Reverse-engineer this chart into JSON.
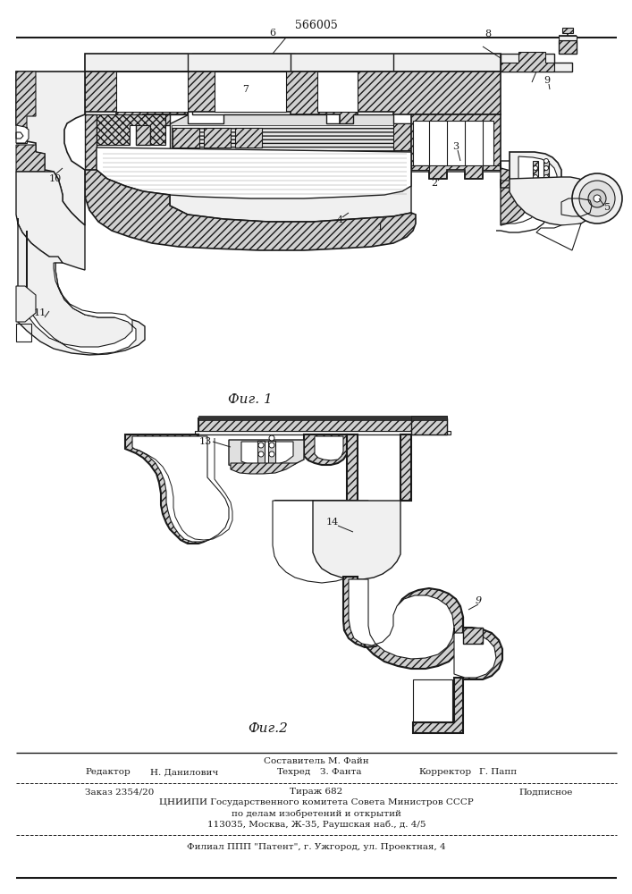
{
  "patent_number": "566005",
  "fig1_label": "Фиг. 1",
  "fig2_label": "Фиг.2",
  "footer_composer": "Составитель М. Файн",
  "footer_editor_label": "Редактор",
  "footer_editor": "Н. Данилович",
  "footer_tech_label": "Техред",
  "footer_tech": "З. Фанта",
  "footer_corrector_label": "Корректор",
  "footer_corrector": "Г. Папп",
  "footer_order_label": "Заказ 2354/20",
  "footer_circulation": "Тираж 682",
  "footer_signed": "Подписное",
  "footer_org": "ЦНИИПИ Государственного комитета Совета Министров СССР",
  "footer_affairs": "по делам изобретений и открытий",
  "footer_address": "113035, Москва, Ж-35, Раушская наб., д. 4/5",
  "footer_branch": "Филиал ППП \"Патент\", г. Ужгород, ул. Проектная, 4",
  "lc": "#1a1a1a",
  "hatch_fc": "#d0d0d0",
  "light_fc": "#f0f0f0",
  "mid_fc": "#e0e0e0"
}
